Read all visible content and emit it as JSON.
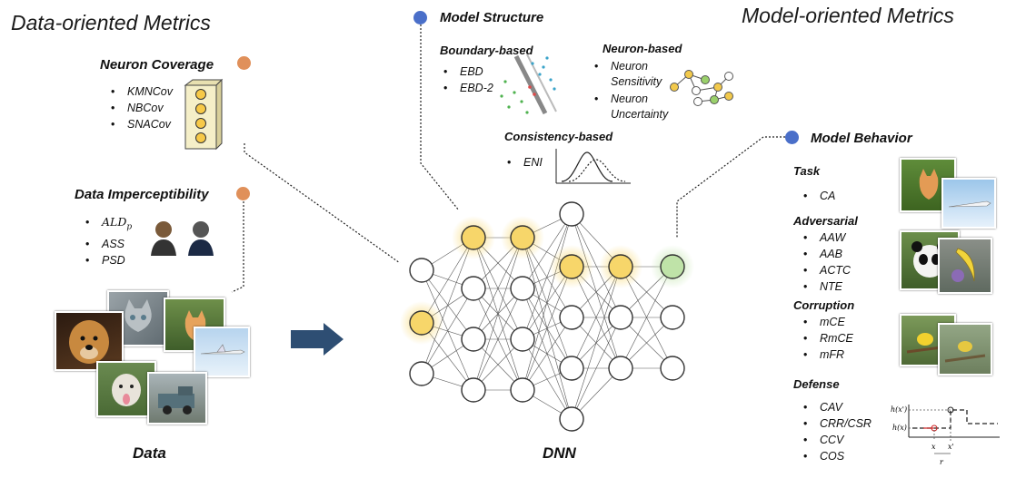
{
  "titles": {
    "data_oriented": "Data-oriented Metrics",
    "model_oriented": "Model-oriented Metrics"
  },
  "neuron_coverage": {
    "title": "Neuron Coverage",
    "items": [
      "KMNCov",
      "NBCov",
      "SNACov"
    ]
  },
  "data_imperceptibility": {
    "title": "Data Imperceptibility",
    "items": [
      "ALD",
      "ASS",
      "PSD"
    ],
    "ald_subscript": "p"
  },
  "model_structure": {
    "title": "Model Structure",
    "boundary": {
      "title": "Boundary-based",
      "items": [
        "EBD",
        "EBD-2"
      ]
    },
    "neuron": {
      "title": "Neuron-based",
      "items": [
        "Neuron Sensitivity",
        "Neuron Uncertainty"
      ]
    },
    "consistency": {
      "title": "Consistency-based",
      "items": [
        "ENI"
      ]
    }
  },
  "model_behavior": {
    "title": "Model Behavior",
    "task": {
      "title": "Task",
      "items": [
        "CA"
      ]
    },
    "adversarial": {
      "title": "Adversarial",
      "items": [
        "AAW",
        "AAB",
        "ACTC",
        "NTE"
      ]
    },
    "corruption": {
      "title": "Corruption",
      "items": [
        "mCE",
        "RmCE",
        "mFR"
      ]
    },
    "defense": {
      "title": "Defense",
      "items": [
        "CAV",
        "CRR/CSR",
        "CCV",
        "COS"
      ]
    },
    "defense_plot": {
      "y_top": "h(x')",
      "y_bottom": "h(x)",
      "x_left": "x",
      "x_right": "x'",
      "r": "r"
    }
  },
  "labels": {
    "data": "Data",
    "dnn": "DNN"
  },
  "colors": {
    "orange_dot": "#e0905a",
    "blue_dot": "#4a6fc9",
    "yellow_node": "#f7d66a",
    "green_node": "#bfe3a8",
    "arrow": "#2e4e73"
  }
}
